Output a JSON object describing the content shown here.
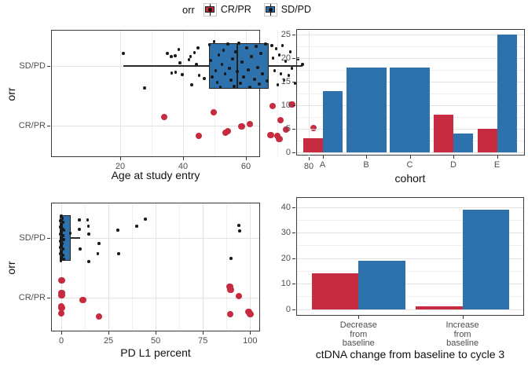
{
  "colors": {
    "crpr_red": "#C62B40",
    "sdpd_blue": "#2E72AD",
    "point_black": "#1a1a1a",
    "grid_major": "#e3e3e3",
    "grid_minor": "#f0f0f0",
    "panel_border": "#3a3a3a",
    "tick_text": "#4d4d4d",
    "box_stroke": "#222222"
  },
  "legend": {
    "title": "orr",
    "items": [
      {
        "label": "CR/PR",
        "color_key": "crpr_red"
      },
      {
        "label": "SD/PD",
        "color_key": "sdpd_blue"
      }
    ]
  },
  "chart_data": [
    {
      "id": "age_by_orr",
      "type": "scatter",
      "xlabel": "Age at study entry",
      "ylabel": "orr",
      "x_ticks": [
        20,
        40,
        60,
        80
      ],
      "x_minor_ticks": [
        30,
        50,
        70
      ],
      "xlim": [
        18,
        84.5
      ],
      "y_categories": [
        "SD/PD",
        "CR/PR"
      ],
      "boxplots": [
        {
          "category": "SD/PD",
          "color_key": "sdpd_blue",
          "q1": 48.3,
          "median": 57.3,
          "q3": 67.3,
          "whisker_low": 21,
          "whisker_high": 78
        }
      ],
      "jitter_unit": "px_offset_from_category_center",
      "series": [
        {
          "name": "SD/PD",
          "color_key": "point_black",
          "point_d": 3.6,
          "points": [
            [
              21,
              -16
            ],
            [
              27.8,
              28
            ],
            [
              35,
              -16
            ],
            [
              36.2,
              -12
            ],
            [
              36.4,
              9
            ],
            [
              37.5,
              -13
            ],
            [
              37.6,
              8
            ],
            [
              38.6,
              -21
            ],
            [
              39,
              -4
            ],
            [
              39.7,
              11
            ],
            [
              41.9,
              -8
            ],
            [
              42.4,
              -12
            ],
            [
              42.8,
              24
            ],
            [
              43.6,
              -17
            ],
            [
              44.3,
              -2
            ],
            [
              44.8,
              -23
            ],
            [
              45.1,
              12
            ],
            [
              46.8,
              16
            ],
            [
              48.4,
              -27
            ],
            [
              48.9,
              -7
            ],
            [
              49.3,
              14
            ],
            [
              49.9,
              -31
            ],
            [
              50.4,
              6
            ],
            [
              50.9,
              21
            ],
            [
              51.4,
              -14
            ],
            [
              51.9,
              27
            ],
            [
              52.4,
              -2
            ],
            [
              52.9,
              -20
            ],
            [
              53.4,
              10
            ],
            [
              54.2,
              -28
            ],
            [
              54.7,
              3
            ],
            [
              55.2,
              18
            ],
            [
              55.7,
              -9
            ],
            [
              56.2,
              26
            ],
            [
              56.7,
              -18
            ],
            [
              57.2,
              7
            ],
            [
              57.7,
              -29
            ],
            [
              58.2,
              22
            ],
            [
              58.7,
              -5
            ],
            [
              59.2,
              14
            ],
            [
              60.2,
              -23
            ],
            [
              60.7,
              5
            ],
            [
              61.2,
              27
            ],
            [
              61.7,
              -12
            ],
            [
              62.7,
              17
            ],
            [
              63.2,
              -25
            ],
            [
              63.7,
              2
            ],
            [
              64.2,
              23
            ],
            [
              64.7,
              -16
            ],
            [
              65.2,
              10
            ],
            [
              66.2,
              -28
            ],
            [
              66.7,
              19
            ],
            [
              68.3,
              -26
            ],
            [
              68.6,
              -10
            ],
            [
              69.1,
              6
            ],
            [
              69.6,
              -22
            ],
            [
              70.1,
              24
            ],
            [
              70.6,
              -14
            ],
            [
              71.1,
              10
            ],
            [
              71.6,
              -26
            ],
            [
              72.1,
              18
            ],
            [
              72.6,
              -6
            ],
            [
              73.6,
              12
            ],
            [
              74.1,
              -18
            ],
            [
              74.6,
              3
            ],
            [
              75.6,
              22
            ],
            [
              76.6,
              -9
            ],
            [
              78,
              -2
            ]
          ]
        },
        {
          "name": "CR/PR",
          "color_key": "crpr_red",
          "point_d": 8.5,
          "points": [
            [
              34,
              -11
            ],
            [
              45,
              13
            ],
            [
              49.8,
              -17
            ],
            [
              53.5,
              9
            ],
            [
              54.3,
              7
            ],
            [
              58.6,
              1
            ],
            [
              61.2,
              -2
            ],
            [
              67.9,
              12
            ],
            [
              68.5,
              -25
            ],
            [
              70,
              13
            ],
            [
              70.6,
              17
            ],
            [
              71,
              -7
            ],
            [
              72.8,
              5
            ],
            [
              74.6,
              -27
            ],
            [
              81.5,
              3
            ]
          ]
        }
      ]
    },
    {
      "id": "cohort_counts",
      "type": "bar",
      "xlabel": "cohort",
      "ylabel": "",
      "categories": [
        "A",
        "B",
        "C",
        "D",
        "E"
      ],
      "series": [
        {
          "name": "CR/PR",
          "color_key": "crpr_red",
          "values": [
            3,
            null,
            null,
            8,
            5
          ]
        },
        {
          "name": "SD/PD",
          "color_key": "sdpd_blue",
          "values": [
            13,
            18,
            18,
            4,
            25
          ]
        }
      ],
      "y_ticks": [
        0,
        5,
        10,
        15,
        20,
        25
      ],
      "y_minor_ticks": [
        2.5,
        7.5,
        12.5,
        17.5,
        22.5
      ],
      "ylim": [
        0,
        26.2
      ]
    },
    {
      "id": "pdl1_by_orr",
      "type": "scatter",
      "xlabel": "PD L1 percent",
      "ylabel": "orr",
      "x_ticks": [
        0,
        25,
        50,
        75,
        100
      ],
      "x_minor_ticks": [
        12.5,
        37.5,
        62.5,
        87.5
      ],
      "xlim": [
        -5.4,
        105.3
      ],
      "y_categories": [
        "SD/PD",
        "CR/PR"
      ],
      "boxplots": [
        {
          "category": "SD/PD",
          "color_key": "sdpd_blue",
          "q1": -0.8,
          "median": 0.6,
          "q3": 5,
          "whisker_low": -0.8,
          "whisker_high": 10
        }
      ],
      "jitter_unit": "px_offset_from_category_center",
      "series": [
        {
          "name": "SD/PD",
          "color_key": "point_black",
          "point_d": 3.6,
          "points": [
            [
              0,
              -28
            ],
            [
              0.6,
              -25
            ],
            [
              -0.4,
              -22
            ],
            [
              1,
              -20
            ],
            [
              0,
              -17
            ],
            [
              -0.7,
              -14
            ],
            [
              0.3,
              -12
            ],
            [
              1.5,
              -10
            ],
            [
              0,
              -8
            ],
            [
              -0.5,
              -5
            ],
            [
              0.8,
              -3
            ],
            [
              0,
              0
            ],
            [
              1.2,
              2
            ],
            [
              -0.3,
              4
            ],
            [
              0.5,
              7
            ],
            [
              0,
              10
            ],
            [
              -0.7,
              12
            ],
            [
              1,
              14
            ],
            [
              0.2,
              17
            ],
            [
              -0.5,
              20
            ],
            [
              0.8,
              22
            ],
            [
              0,
              25
            ],
            [
              1.4,
              27
            ],
            [
              -0.2,
              29
            ],
            [
              9.5,
              -23
            ],
            [
              14,
              -23
            ],
            [
              9.5,
              -11
            ],
            [
              14.3,
              -15
            ],
            [
              14.5,
              -5
            ],
            [
              4.8,
              -6
            ],
            [
              10,
              14
            ],
            [
              19.9,
              7
            ],
            [
              19.4,
              20
            ],
            [
              14.5,
              30
            ],
            [
              30,
              -10
            ],
            [
              30.5,
              20
            ],
            [
              40,
              -15
            ],
            [
              44.5,
              -24
            ],
            [
              94,
              -16
            ],
            [
              94.5,
              -9
            ],
            [
              89.9,
              26
            ]
          ]
        },
        {
          "name": "CR/PR",
          "color_key": "crpr_red",
          "point_d": 8.5,
          "points": [
            [
              0.3,
              -22
            ],
            [
              0.2,
              -6
            ],
            [
              0.3,
              -3
            ],
            [
              0,
              11
            ],
            [
              0.3,
              13
            ],
            [
              0,
              20
            ],
            [
              11.4,
              3
            ],
            [
              19.9,
              24
            ],
            [
              89.2,
              -14
            ],
            [
              89.6,
              -10
            ],
            [
              94,
              -2
            ],
            [
              89.4,
              21
            ],
            [
              99.2,
              18
            ],
            [
              100,
              21
            ]
          ]
        }
      ]
    },
    {
      "id": "ctdna_change",
      "type": "bar",
      "xlabel": "ctDNA change from baseline to cycle 3",
      "ylabel": "",
      "categories": [
        [
          "Decrease",
          "from",
          "baseline"
        ],
        [
          "Increase",
          "from",
          "baseline"
        ]
      ],
      "series": [
        {
          "name": "CR/PR",
          "color_key": "crpr_red",
          "values": [
            14,
            1
          ]
        },
        {
          "name": "SD/PD",
          "color_key": "sdpd_blue",
          "values": [
            19,
            39
          ]
        }
      ],
      "y_ticks": [
        0,
        10,
        20,
        30,
        40
      ],
      "y_minor_ticks": [
        5,
        15,
        25,
        35
      ],
      "ylim": [
        0,
        43.7
      ]
    }
  ]
}
